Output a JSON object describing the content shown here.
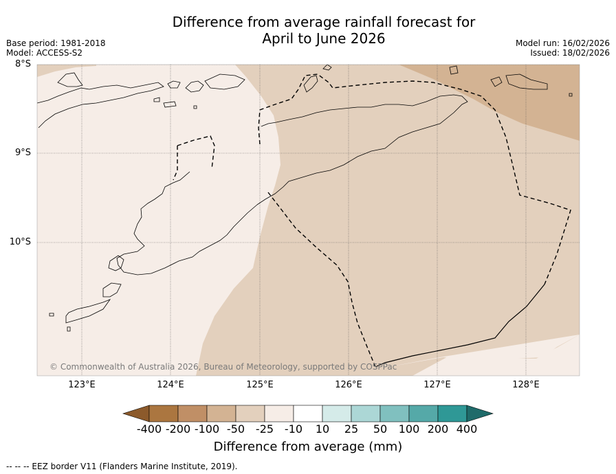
{
  "title_line1": "Difference from average rainfall forecast for",
  "title_line2": "April to June 2026",
  "meta_left": {
    "base_period": "Base period: 1981-2018",
    "model": "Model: ACCESS-S2"
  },
  "meta_right": {
    "model_run": "Model run: 16/02/2026",
    "issued": "Issued: 18/02/2026"
  },
  "lat_labels": [
    "8°S",
    "9°S",
    "10°S"
  ],
  "lon_labels": [
    "123°E",
    "124°E",
    "125°E",
    "126°E",
    "127°E",
    "128°E"
  ],
  "credit": "© Commonwealth of Australia 2026, Bureau of Meteorology, supported by COSPPac",
  "legend": {
    "title": "Difference from average (mm)",
    "ticks": [
      "-400",
      "-200",
      "-100",
      "-50",
      "-25",
      "-10",
      "10",
      "25",
      "50",
      "100",
      "200",
      "400"
    ],
    "colors": [
      "#8c5a2b",
      "#ab7640",
      "#c08f66",
      "#d3b393",
      "#e3d0bd",
      "#f6ede7",
      "#ffffff",
      "#d5ebe9",
      "#acd7d6",
      "#80c0bf",
      "#55a9a8",
      "#2f9896",
      "#1f6b6a"
    ]
  },
  "footnote": "-- -- -- EEZ border V11 (Flanders Marine Institute, 2019).",
  "regions": {
    "very_dry": "-50 to -100 mm",
    "dry": "-25 to -50 mm",
    "slightly_dry": "-10 to -25 mm"
  }
}
